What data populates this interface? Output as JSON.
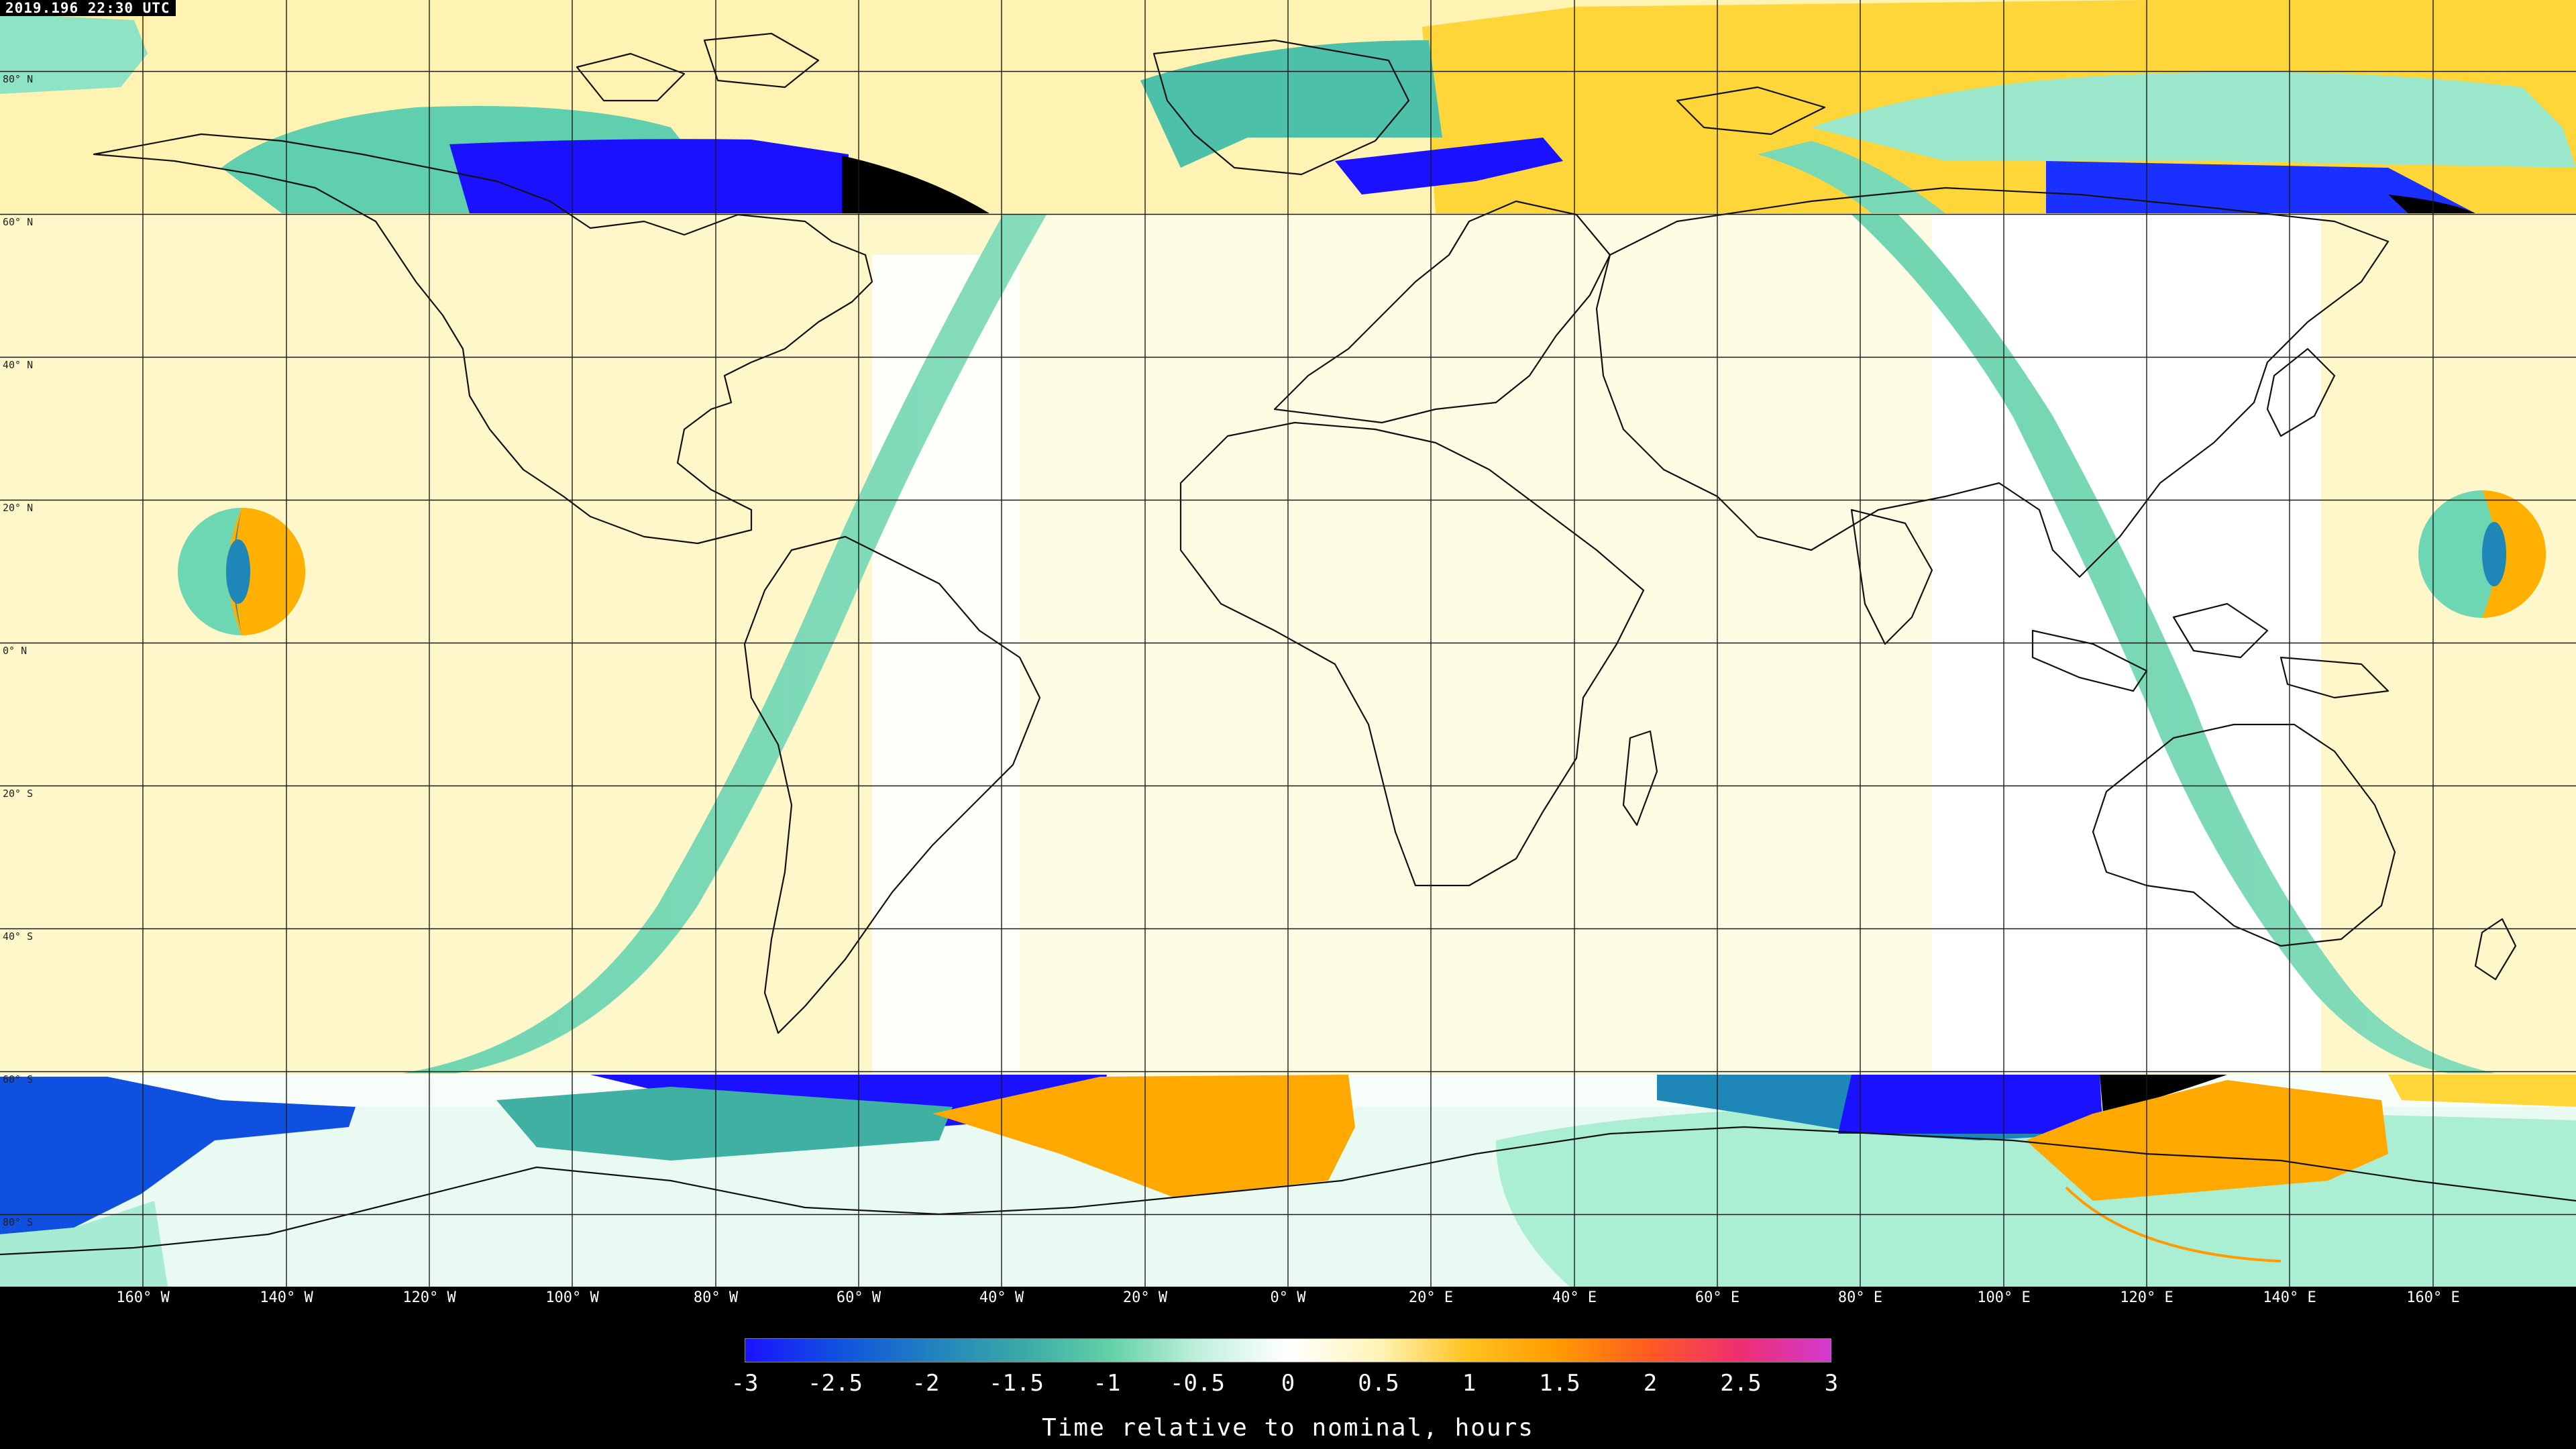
{
  "timestamp": "2019.196 22:30 UTC",
  "lat_labels": [
    "80° N",
    "60° N",
    "40° N",
    "20° N",
    "0° N",
    "20° S",
    "40° S",
    "60° S",
    "80° S"
  ],
  "lat_values": [
    80,
    60,
    40,
    20,
    0,
    -20,
    -40,
    -60,
    -80
  ],
  "lon_labels": [
    "160° W",
    "140° W",
    "120° W",
    "100° W",
    "80° W",
    "60° W",
    "40° W",
    "20° W",
    "0° W",
    "20° E",
    "40° E",
    "60° E",
    "80° E",
    "100° E",
    "120° E",
    "140° E",
    "160° E"
  ],
  "lon_values": [
    -160,
    -140,
    -120,
    -100,
    -80,
    -60,
    -40,
    -20,
    0,
    20,
    40,
    60,
    80,
    100,
    120,
    140,
    160
  ],
  "colorbar": {
    "title": "Time relative to nominal, hours",
    "ticks": [
      "-3",
      "-2.5",
      "-2",
      "-1.5",
      "-1",
      "-0.5",
      "0",
      "0.5",
      "1",
      "1.5",
      "2",
      "2.5",
      "3"
    ],
    "min": -3,
    "max": 3,
    "stops": [
      {
        "value": -3,
        "color": "#1a12ff"
      },
      {
        "value": -2.5,
        "color": "#1050e0"
      },
      {
        "value": -2,
        "color": "#1f7fc0"
      },
      {
        "value": -1.5,
        "color": "#3aa6a8"
      },
      {
        "value": -1,
        "color": "#5fd0a6"
      },
      {
        "value": -0.5,
        "color": "#bff0dc"
      },
      {
        "value": 0,
        "color": "#ffffff"
      },
      {
        "value": 0.5,
        "color": "#fff4b8"
      },
      {
        "value": 1,
        "color": "#ffc21e"
      },
      {
        "value": 1.5,
        "color": "#ff9a00"
      },
      {
        "value": 2,
        "color": "#ff5a22"
      },
      {
        "value": 2.5,
        "color": "#ee2e72"
      },
      {
        "value": 3,
        "color": "#d13ad1"
      }
    ]
  },
  "colors": {
    "background": "#000000",
    "map_light_yellow": "#fdf7c4",
    "map_white": "#ffffff",
    "swath_teal": "#78d9b4",
    "dark_blue": "#1a12ff",
    "mid_blue": "#1f86b8",
    "orange": "#ffa800",
    "yellow": "#ffd42e",
    "teal": "#3fb0a2",
    "night_black": "#000000"
  }
}
